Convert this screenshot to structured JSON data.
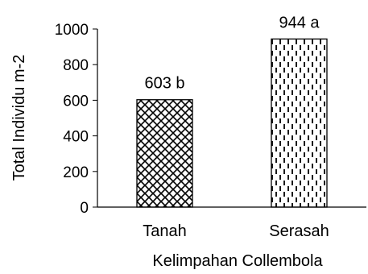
{
  "chart_data": {
    "type": "bar",
    "categories": [
      "Tanah",
      "Serasah"
    ],
    "values": [
      603,
      944
    ],
    "data_labels": [
      "603 b",
      "944 a"
    ],
    "patterns": [
      "crosshatch",
      "vertical-dashes"
    ],
    "xlabel": "Kelimpahan Collembola",
    "ylabel": "Total Individu m-2",
    "ylim": [
      0,
      1000
    ],
    "yticks": [
      0,
      200,
      400,
      600,
      800,
      1000
    ],
    "grid": false,
    "legend": "none"
  }
}
